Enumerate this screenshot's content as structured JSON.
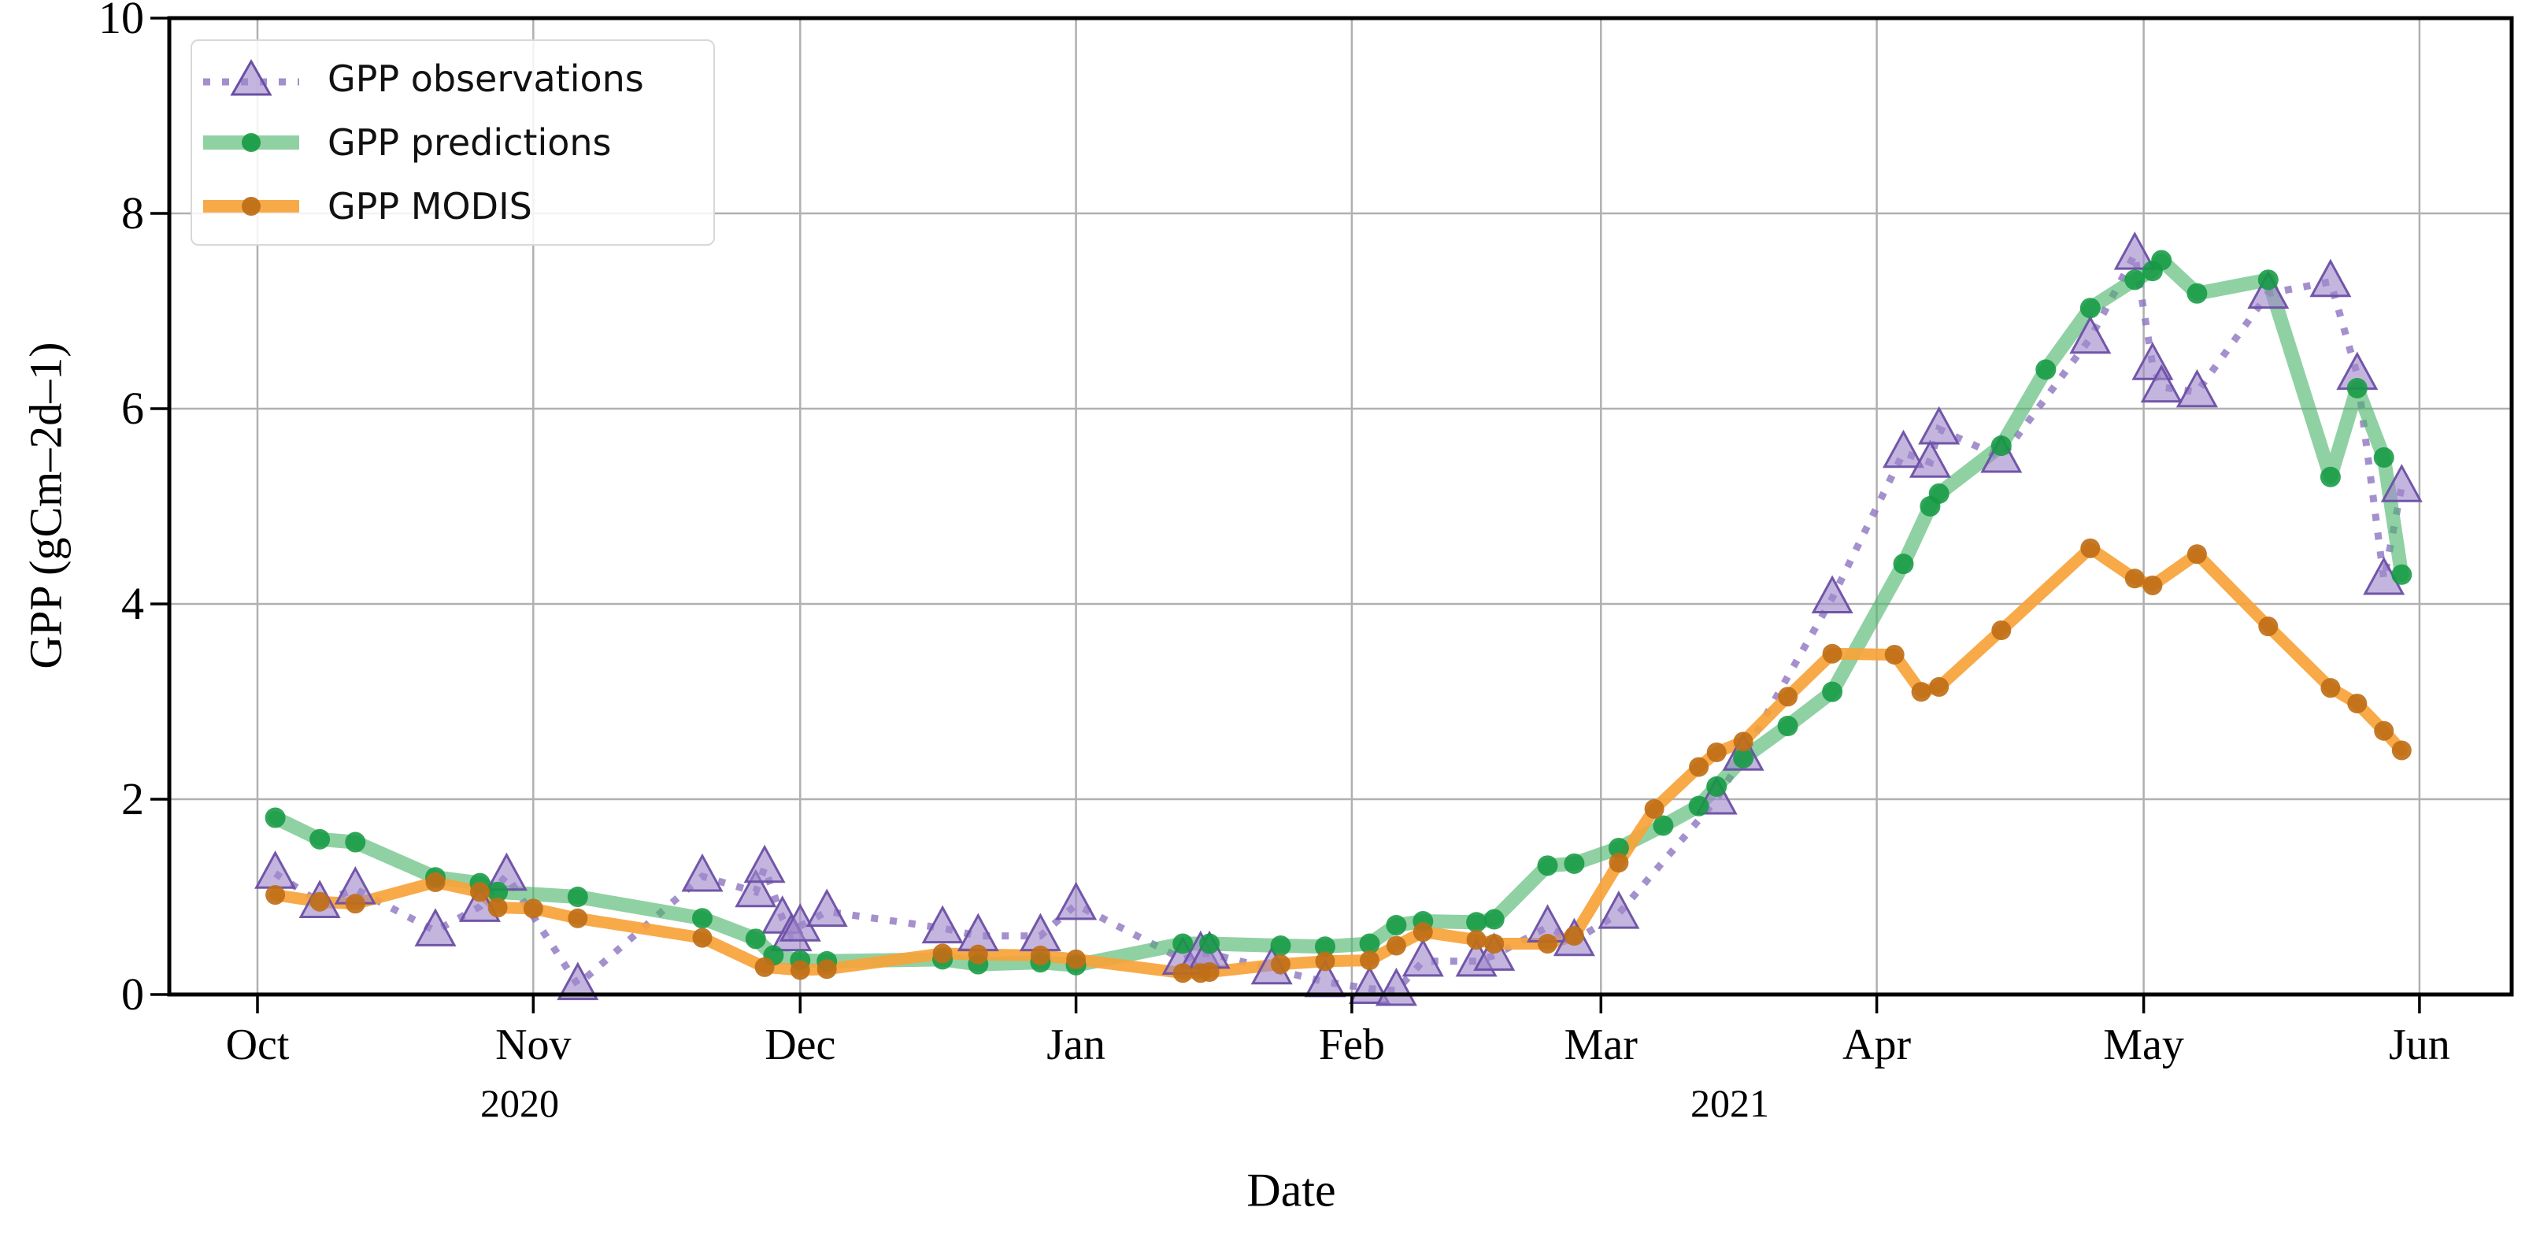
{
  "legend": {
    "items": [
      {
        "label": "GPP observations",
        "series": "observations"
      },
      {
        "label": "GPP predictions",
        "series": "predictions"
      },
      {
        "label": "GPP MODIS",
        "series": "modis"
      }
    ]
  },
  "axes": {
    "x_title": "Date",
    "y_title": "GPP (gCm–2d–1)",
    "year_labels": [
      {
        "text": "2020"
      },
      {
        "text": "2021"
      }
    ]
  },
  "chart_data": {
    "type": "line",
    "title": "",
    "xlabel": "Date",
    "ylabel": "GPP (gCm–2d–1)",
    "ylim": [
      0,
      10
    ],
    "grid": true,
    "legend_position": "upper left",
    "x_unit": "days since 2020-10-01",
    "xticks": [
      {
        "label": "Oct",
        "day": 0
      },
      {
        "label": "Nov",
        "day": 31
      },
      {
        "label": "Dec",
        "day": 61
      },
      {
        "label": "Jan",
        "day": 92
      },
      {
        "label": "Feb",
        "day": 123
      },
      {
        "label": "Mar",
        "day": 151
      },
      {
        "label": "Apr",
        "day": 182
      },
      {
        "label": "May",
        "day": 212
      },
      {
        "label": "Jun",
        "day": 243
      }
    ],
    "yticks": [
      0,
      2,
      4,
      6,
      8,
      10
    ],
    "colors": {
      "observations_line": "#8d74c0",
      "observations_marker_fill": "#9f87cc",
      "observations_marker_edge": "#6b4fa4",
      "predictions_line": "#4cb56b",
      "predictions_marker": "#159a43",
      "modis_line": "#f7a339",
      "modis_marker": "#bf6f17",
      "grid": "#b0b0b0",
      "spine": "#000000"
    },
    "series": [
      {
        "name": "GPP observations",
        "style": "dotted",
        "marker": "triangle",
        "points": [
          [
            2,
            1.24
          ],
          [
            7,
            0.94
          ],
          [
            11,
            1.08
          ],
          [
            20,
            0.65
          ],
          [
            25,
            0.9
          ],
          [
            28,
            1.22
          ],
          [
            36,
            0.1
          ],
          [
            50,
            1.21
          ],
          [
            56,
            1.05
          ],
          [
            57,
            1.3
          ],
          [
            59,
            0.78
          ],
          [
            60,
            0.6
          ],
          [
            61,
            0.7
          ],
          [
            64,
            0.85
          ],
          [
            77,
            0.68
          ],
          [
            81,
            0.6
          ],
          [
            88,
            0.6
          ],
          [
            92,
            0.92
          ],
          [
            104,
            0.36
          ],
          [
            106,
            0.42
          ],
          [
            107,
            0.42
          ],
          [
            114,
            0.26
          ],
          [
            120,
            0.13
          ],
          [
            125,
            0.06
          ],
          [
            128,
            0.04
          ],
          [
            131,
            0.34
          ],
          [
            137,
            0.34
          ],
          [
            139,
            0.4
          ],
          [
            145,
            0.69
          ],
          [
            148,
            0.55
          ],
          [
            153,
            0.83
          ],
          [
            164,
            2.0
          ],
          [
            167,
            2.45
          ],
          [
            177,
            4.06
          ],
          [
            185,
            5.55
          ],
          [
            188,
            5.45
          ],
          [
            189,
            5.79
          ],
          [
            196,
            5.5
          ],
          [
            206,
            6.72
          ],
          [
            211,
            7.58
          ],
          [
            213,
            6.45
          ],
          [
            214,
            6.22
          ],
          [
            218,
            6.17
          ],
          [
            226,
            7.18
          ],
          [
            233,
            7.3
          ],
          [
            236,
            6.35
          ],
          [
            239,
            4.25
          ],
          [
            241,
            5.2
          ]
        ]
      },
      {
        "name": "GPP predictions",
        "style": "solid",
        "marker": "circle",
        "points": [
          [
            2,
            1.81
          ],
          [
            7,
            1.59
          ],
          [
            11,
            1.56
          ],
          [
            20,
            1.2
          ],
          [
            25,
            1.14
          ],
          [
            27,
            1.05
          ],
          [
            36,
            1.0
          ],
          [
            50,
            0.78
          ],
          [
            56,
            0.57
          ],
          [
            58,
            0.4
          ],
          [
            61,
            0.35
          ],
          [
            64,
            0.34
          ],
          [
            77,
            0.36
          ],
          [
            81,
            0.31
          ],
          [
            88,
            0.33
          ],
          [
            92,
            0.3
          ],
          [
            104,
            0.52
          ],
          [
            107,
            0.52
          ],
          [
            115,
            0.5
          ],
          [
            120,
            0.49
          ],
          [
            125,
            0.52
          ],
          [
            128,
            0.71
          ],
          [
            131,
            0.75
          ],
          [
            137,
            0.74
          ],
          [
            139,
            0.77
          ],
          [
            145,
            1.32
          ],
          [
            148,
            1.34
          ],
          [
            153,
            1.5
          ],
          [
            158,
            1.73
          ],
          [
            162,
            1.93
          ],
          [
            164,
            2.13
          ],
          [
            167,
            2.42
          ],
          [
            172,
            2.75
          ],
          [
            177,
            3.1
          ],
          [
            185,
            4.41
          ],
          [
            188,
            5.0
          ],
          [
            189,
            5.13
          ],
          [
            196,
            5.62
          ],
          [
            201,
            6.4
          ],
          [
            206,
            7.03
          ],
          [
            211,
            7.32
          ],
          [
            213,
            7.41
          ],
          [
            214,
            7.52
          ],
          [
            218,
            7.18
          ],
          [
            226,
            7.32
          ],
          [
            233,
            5.3
          ],
          [
            236,
            6.21
          ],
          [
            239,
            5.5
          ],
          [
            241,
            4.3
          ]
        ]
      },
      {
        "name": "GPP MODIS",
        "style": "solid",
        "marker": "circle",
        "points": [
          [
            2,
            1.02
          ],
          [
            7,
            0.95
          ],
          [
            11,
            0.93
          ],
          [
            20,
            1.15
          ],
          [
            25,
            1.05
          ],
          [
            27,
            0.89
          ],
          [
            31,
            0.88
          ],
          [
            36,
            0.78
          ],
          [
            50,
            0.58
          ],
          [
            57,
            0.28
          ],
          [
            61,
            0.25
          ],
          [
            64,
            0.26
          ],
          [
            77,
            0.42
          ],
          [
            81,
            0.41
          ],
          [
            88,
            0.4
          ],
          [
            92,
            0.36
          ],
          [
            104,
            0.22
          ],
          [
            106,
            0.22
          ],
          [
            107,
            0.23
          ],
          [
            115,
            0.31
          ],
          [
            120,
            0.34
          ],
          [
            125,
            0.35
          ],
          [
            128,
            0.5
          ],
          [
            131,
            0.64
          ],
          [
            137,
            0.56
          ],
          [
            139,
            0.52
          ],
          [
            145,
            0.52
          ],
          [
            148,
            0.6
          ],
          [
            153,
            1.35
          ],
          [
            157,
            1.9
          ],
          [
            162,
            2.33
          ],
          [
            164,
            2.48
          ],
          [
            167,
            2.59
          ],
          [
            172,
            3.05
          ],
          [
            177,
            3.49
          ],
          [
            184,
            3.48
          ],
          [
            187,
            3.1
          ],
          [
            189,
            3.15
          ],
          [
            196,
            3.73
          ],
          [
            206,
            4.57
          ],
          [
            211,
            4.26
          ],
          [
            213,
            4.19
          ],
          [
            218,
            4.51
          ],
          [
            226,
            3.77
          ],
          [
            233,
            3.14
          ],
          [
            236,
            2.98
          ],
          [
            239,
            2.7
          ],
          [
            241,
            2.5
          ]
        ]
      }
    ]
  }
}
